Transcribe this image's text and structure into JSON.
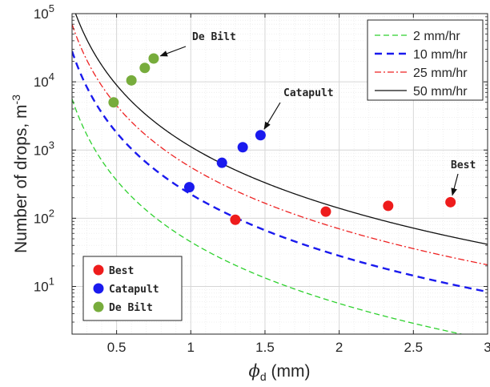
{
  "chart_data": {
    "type": "line",
    "x_axis": {
      "label_symbol": "ϕ",
      "label_sub": "d",
      "label_unit": " (mm)",
      "range": [
        0.2,
        3
      ],
      "ticks": [
        "0.5",
        "1",
        "1.5",
        "2",
        "2.5",
        "3"
      ],
      "tick_values": [
        0.5,
        1,
        1.5,
        2,
        2.5,
        3
      ]
    },
    "y_axis": {
      "label": "Number of drops, m",
      "label_sup": "-3",
      "scale": "log",
      "range": [
        2,
        100000
      ],
      "ticks": [
        {
          "base": "10",
          "exp": "1",
          "value": 10
        },
        {
          "base": "10",
          "exp": "2",
          "value": 100
        },
        {
          "base": "10",
          "exp": "3",
          "value": 1000
        },
        {
          "base": "10",
          "exp": "4",
          "value": 10000
        },
        {
          "base": "10",
          "exp": "5",
          "value": 100000
        }
      ]
    },
    "grid": true,
    "minor_grid": true,
    "series": [
      {
        "name": "2 mm/hr",
        "k": 45,
        "color": "#2ed12e",
        "dash": "7,4",
        "width": 1.3
      },
      {
        "name": "10 mm/hr",
        "k": 225,
        "color": "#1a1aee",
        "dash": "9,6",
        "width": 2.4
      },
      {
        "name": "25 mm/hr",
        "k": 560,
        "color": "#ee2222",
        "dash": "8,3,2,3",
        "width": 1.3
      },
      {
        "name": "50 mm/hr",
        "k": 1120,
        "color": "#111111",
        "dash": "",
        "width": 1.3
      }
    ],
    "point_groups": [
      {
        "name": "Best",
        "color": "#ee1c1c",
        "points": [
          {
            "x": 1.3,
            "y": 95
          },
          {
            "x": 1.91,
            "y": 125
          },
          {
            "x": 2.33,
            "y": 152
          },
          {
            "x": 2.75,
            "y": 172
          }
        ]
      },
      {
        "name": "Catapult",
        "color": "#1a1aee",
        "points": [
          {
            "x": 0.99,
            "y": 285
          },
          {
            "x": 1.21,
            "y": 650
          },
          {
            "x": 1.35,
            "y": 1100
          },
          {
            "x": 1.47,
            "y": 1650
          }
        ]
      },
      {
        "name": "De Bilt",
        "color": "#77ac3c",
        "points": [
          {
            "x": 0.48,
            "y": 5000
          },
          {
            "x": 0.6,
            "y": 10500
          },
          {
            "x": 0.69,
            "y": 16000
          },
          {
            "x": 0.75,
            "y": 22000
          }
        ]
      }
    ],
    "annotations": [
      {
        "text": "De Bilt",
        "x": 0.75,
        "y": 22000
      },
      {
        "text": "Catapult",
        "x": 1.47,
        "y": 1650
      },
      {
        "text": "Best",
        "x": 2.75,
        "y": 172
      }
    ],
    "legend_position": "top-right",
    "points_legend_position": "bottom-left"
  }
}
